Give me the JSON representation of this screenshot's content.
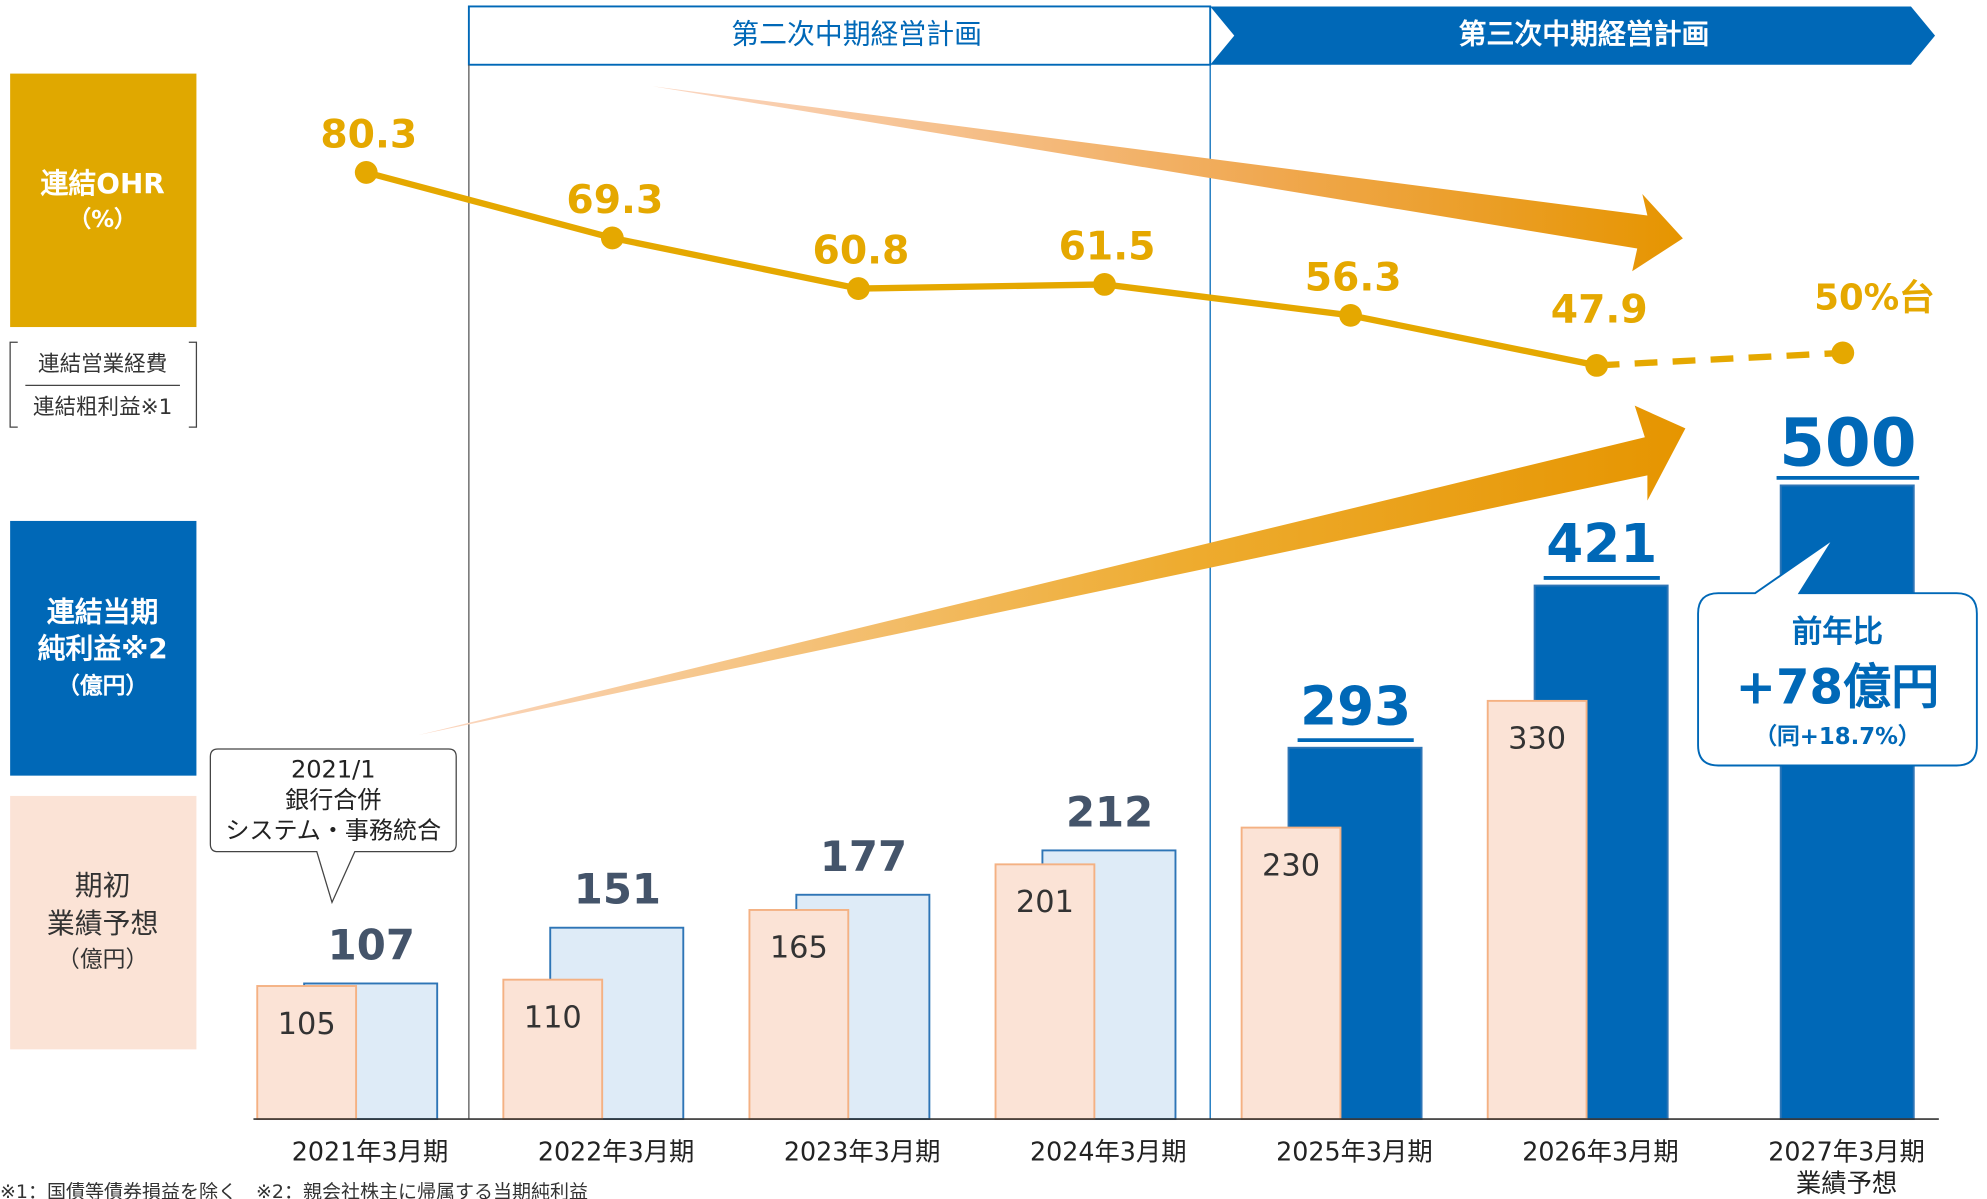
{
  "header": {
    "plan2": "第二次中期経営計画",
    "plan3": "第三次中期経営計画"
  },
  "side_labels": {
    "ohr": [
      "連結OHR",
      "（%）"
    ],
    "ohr_numerator": "連結営業経費",
    "ohr_denominator": "連結粗利益※1",
    "net_income": [
      "連結当期",
      "純利益※2",
      "（億円）"
    ],
    "forecast": [
      "期初",
      "業績予想",
      "（億円）"
    ]
  },
  "chart_data": {
    "type": "bar",
    "categories": [
      "2021年3月期",
      "2022年3月期",
      "2023年3月期",
      "2024年3月期",
      "2025年3月期",
      "2026年3月期",
      "2027年3月期"
    ],
    "category_note": "業績予想",
    "series": [
      {
        "role": "actual",
        "values": [
          107,
          151,
          177,
          212,
          293,
          421,
          500
        ],
        "fills": [
          "#deebf7",
          "#deebf7",
          "#deebf7",
          "#deebf7",
          "#0068b7",
          "#0068b7",
          "#0068b7"
        ],
        "stroke": "#2e75b6",
        "label_colors": [
          "#44546a",
          "#44546a",
          "#44546a",
          "#44546a",
          "#0068b7",
          "#0068b7",
          "#0068b7"
        ]
      },
      {
        "role": "forecast",
        "values": [
          105,
          110,
          165,
          201,
          230,
          330,
          null
        ],
        "color": "#fbe3d6",
        "stroke": "#f4b183",
        "label_color": "#333333"
      }
    ],
    "line": {
      "type": "line",
      "color": "#e5a800",
      "values": [
        80.3,
        69.3,
        60.8,
        61.5,
        56.3,
        47.9,
        50
      ],
      "value_labels": [
        "80.3",
        "69.3",
        "60.8",
        "61.5",
        "56.3",
        "47.9",
        "50%台"
      ],
      "dashed_from": 5
    }
  },
  "callouts": {
    "merger": [
      "2021/1",
      "銀行合併",
      "システム・事務統合"
    ],
    "growth": [
      "前年比",
      "+78億円",
      "（同+18.7%）"
    ]
  },
  "footnote": "※1：国債等債券損益を除く　※2：親会社株主に帰属する当期純利益"
}
